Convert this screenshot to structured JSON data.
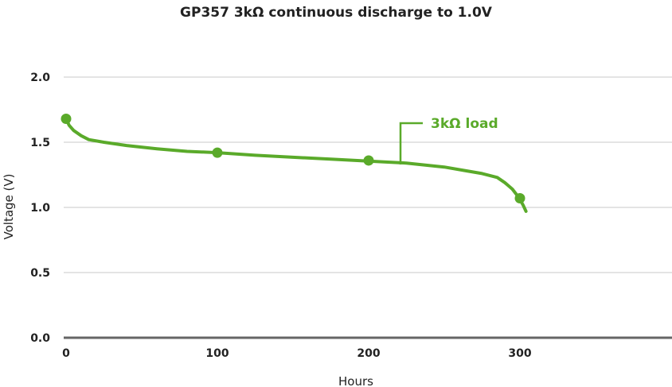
{
  "chart_data": {
    "type": "line",
    "title": "GP357 3kΩ continuous discharge to 1.0V",
    "xlabel": "Hours",
    "ylabel": "Voltage (V)",
    "xlim": [
      0,
      390
    ],
    "ylim": [
      0,
      2.0
    ],
    "x_ticks": [
      "0",
      "100",
      "200",
      "300"
    ],
    "x_tick_values": [
      0,
      100,
      200,
      300
    ],
    "y_ticks": [
      "0.0",
      "0.5",
      "1.0",
      "1.5",
      "2.0"
    ],
    "y_tick_values": [
      0,
      0.5,
      1.0,
      1.5,
      2.0
    ],
    "grid": "horizontal",
    "series": [
      {
        "name": "3kΩ load",
        "color": "#5aaa2a",
        "x": [
          0,
          2,
          5,
          10,
          15,
          25,
          40,
          60,
          80,
          100,
          125,
          150,
          175,
          200,
          225,
          250,
          265,
          275,
          285,
          290,
          295,
          299,
          302,
          304
        ],
        "y": [
          1.68,
          1.63,
          1.59,
          1.55,
          1.52,
          1.5,
          1.475,
          1.45,
          1.43,
          1.42,
          1.4,
          1.385,
          1.37,
          1.355,
          1.34,
          1.31,
          1.28,
          1.26,
          1.23,
          1.19,
          1.14,
          1.08,
          1.02,
          0.97
        ],
        "markers_x": [
          0,
          100,
          200,
          300
        ],
        "markers_y": [
          1.68,
          1.42,
          1.36,
          1.07
        ]
      }
    ]
  }
}
